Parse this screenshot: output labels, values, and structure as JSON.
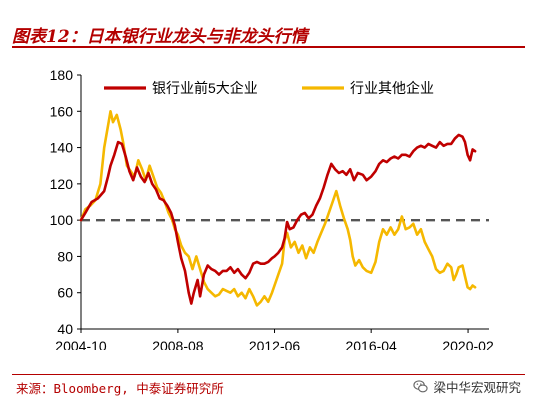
{
  "header": {
    "title": "图表12：日本银行业龙头与非龙头行情"
  },
  "footer": {
    "source": "来源：Bloomberg, 中泰证券研究所",
    "watermark": "梁中华宏观研究",
    "watermark_icon": "wechat-icon"
  },
  "chart_data": {
    "type": "line",
    "title": "",
    "xlabel": "",
    "ylabel": "",
    "ylim": [
      40,
      180
    ],
    "yticks": [
      40,
      60,
      80,
      100,
      120,
      140,
      160,
      180
    ],
    "xlim": [
      2004.83,
      2021.0
    ],
    "xticks": [
      {
        "label": "2004-10",
        "value": 2004.83
      },
      {
        "label": "2008-08",
        "value": 2008.67
      },
      {
        "label": "2012-06",
        "value": 2012.5
      },
      {
        "label": "2016-04",
        "value": 2016.33
      },
      {
        "label": "2020-02",
        "value": 2020.17
      }
    ],
    "reference_line": {
      "y": 100,
      "style": "dashed",
      "color": "#555555"
    },
    "legend": {
      "position": "top"
    },
    "grid": false,
    "series": [
      {
        "name": "银行业前5大企业",
        "color": "#C00000",
        "points": [
          [
            2004.83,
            100
          ],
          [
            2005.0,
            104
          ],
          [
            2005.25,
            110
          ],
          [
            2005.5,
            112
          ],
          [
            2005.75,
            116
          ],
          [
            2005.9,
            124
          ],
          [
            2006.0,
            130
          ],
          [
            2006.15,
            136
          ],
          [
            2006.3,
            143
          ],
          [
            2006.45,
            142
          ],
          [
            2006.6,
            135
          ],
          [
            2006.75,
            127
          ],
          [
            2006.9,
            122
          ],
          [
            2007.05,
            129
          ],
          [
            2007.2,
            124
          ],
          [
            2007.35,
            121
          ],
          [
            2007.5,
            126
          ],
          [
            2007.65,
            120
          ],
          [
            2007.8,
            117
          ],
          [
            2007.95,
            112
          ],
          [
            2008.1,
            111
          ],
          [
            2008.25,
            108
          ],
          [
            2008.4,
            104
          ],
          [
            2008.55,
            97
          ],
          [
            2008.67,
            88
          ],
          [
            2008.8,
            79
          ],
          [
            2008.95,
            72
          ],
          [
            2009.1,
            60
          ],
          [
            2009.2,
            54
          ],
          [
            2009.3,
            60
          ],
          [
            2009.45,
            67
          ],
          [
            2009.55,
            58
          ],
          [
            2009.7,
            70
          ],
          [
            2009.85,
            75
          ],
          [
            2010.0,
            73
          ],
          [
            2010.15,
            72
          ],
          [
            2010.3,
            70
          ],
          [
            2010.45,
            72
          ],
          [
            2010.6,
            72
          ],
          [
            2010.75,
            74
          ],
          [
            2010.9,
            71
          ],
          [
            2011.05,
            73
          ],
          [
            2011.2,
            70
          ],
          [
            2011.35,
            68
          ],
          [
            2011.5,
            71
          ],
          [
            2011.65,
            76
          ],
          [
            2011.8,
            77
          ],
          [
            2011.95,
            76
          ],
          [
            2012.1,
            76
          ],
          [
            2012.25,
            77
          ],
          [
            2012.4,
            79
          ],
          [
            2012.5,
            80
          ],
          [
            2012.65,
            82
          ],
          [
            2012.8,
            85
          ],
          [
            2012.9,
            90
          ],
          [
            2013.0,
            99
          ],
          [
            2013.1,
            95
          ],
          [
            2013.25,
            96
          ],
          [
            2013.4,
            100
          ],
          [
            2013.55,
            103
          ],
          [
            2013.7,
            104
          ],
          [
            2013.85,
            101
          ],
          [
            2014.0,
            103
          ],
          [
            2014.15,
            108
          ],
          [
            2014.3,
            112
          ],
          [
            2014.45,
            118
          ],
          [
            2014.6,
            125
          ],
          [
            2014.75,
            131
          ],
          [
            2014.9,
            128
          ],
          [
            2015.05,
            126
          ],
          [
            2015.2,
            127
          ],
          [
            2015.35,
            125
          ],
          [
            2015.5,
            128
          ],
          [
            2015.65,
            122
          ],
          [
            2015.8,
            126
          ],
          [
            2016.0,
            125
          ],
          [
            2016.15,
            122
          ],
          [
            2016.33,
            124
          ],
          [
            2016.5,
            127
          ],
          [
            2016.65,
            131
          ],
          [
            2016.8,
            133
          ],
          [
            2016.95,
            132
          ],
          [
            2017.1,
            134
          ],
          [
            2017.25,
            135
          ],
          [
            2017.4,
            134
          ],
          [
            2017.55,
            136
          ],
          [
            2017.7,
            136
          ],
          [
            2017.85,
            135
          ],
          [
            2018.0,
            138
          ],
          [
            2018.15,
            140
          ],
          [
            2018.3,
            141
          ],
          [
            2018.45,
            140
          ],
          [
            2018.6,
            142
          ],
          [
            2018.75,
            141
          ],
          [
            2018.9,
            140
          ],
          [
            2019.05,
            143
          ],
          [
            2019.2,
            141
          ],
          [
            2019.35,
            142
          ],
          [
            2019.5,
            142
          ],
          [
            2019.65,
            145
          ],
          [
            2019.8,
            147
          ],
          [
            2019.95,
            146
          ],
          [
            2020.05,
            143
          ],
          [
            2020.15,
            136
          ],
          [
            2020.25,
            133
          ],
          [
            2020.35,
            139
          ],
          [
            2020.45,
            138
          ]
        ]
      },
      {
        "name": "行业其他企业",
        "color": "#F5B800",
        "points": [
          [
            2004.83,
            100
          ],
          [
            2005.0,
            106
          ],
          [
            2005.2,
            108
          ],
          [
            2005.4,
            111
          ],
          [
            2005.6,
            120
          ],
          [
            2005.75,
            140
          ],
          [
            2005.9,
            152
          ],
          [
            2006.0,
            160
          ],
          [
            2006.1,
            154
          ],
          [
            2006.25,
            158
          ],
          [
            2006.4,
            150
          ],
          [
            2006.5,
            143
          ],
          [
            2006.65,
            130
          ],
          [
            2006.8,
            127
          ],
          [
            2006.95,
            124
          ],
          [
            2007.1,
            133
          ],
          [
            2007.25,
            128
          ],
          [
            2007.4,
            122
          ],
          [
            2007.55,
            130
          ],
          [
            2007.7,
            124
          ],
          [
            2007.85,
            118
          ],
          [
            2008.0,
            115
          ],
          [
            2008.15,
            110
          ],
          [
            2008.3,
            104
          ],
          [
            2008.45,
            100
          ],
          [
            2008.55,
            95
          ],
          [
            2008.67,
            92
          ],
          [
            2008.8,
            86
          ],
          [
            2008.95,
            82
          ],
          [
            2009.1,
            80
          ],
          [
            2009.25,
            73
          ],
          [
            2009.4,
            80
          ],
          [
            2009.55,
            73
          ],
          [
            2009.7,
            66
          ],
          [
            2009.85,
            62
          ],
          [
            2010.0,
            60
          ],
          [
            2010.15,
            58
          ],
          [
            2010.3,
            59
          ],
          [
            2010.45,
            62
          ],
          [
            2010.6,
            61
          ],
          [
            2010.75,
            60
          ],
          [
            2010.9,
            62
          ],
          [
            2011.05,
            58
          ],
          [
            2011.2,
            60
          ],
          [
            2011.35,
            57
          ],
          [
            2011.5,
            62
          ],
          [
            2011.65,
            58
          ],
          [
            2011.8,
            53
          ],
          [
            2011.95,
            55
          ],
          [
            2012.1,
            58
          ],
          [
            2012.25,
            55
          ],
          [
            2012.4,
            60
          ],
          [
            2012.5,
            64
          ],
          [
            2012.65,
            70
          ],
          [
            2012.8,
            76
          ],
          [
            2012.9,
            89
          ],
          [
            2013.0,
            93
          ],
          [
            2013.15,
            85
          ],
          [
            2013.3,
            88
          ],
          [
            2013.45,
            82
          ],
          [
            2013.6,
            86
          ],
          [
            2013.75,
            79
          ],
          [
            2013.9,
            85
          ],
          [
            2014.05,
            82
          ],
          [
            2014.2,
            88
          ],
          [
            2014.35,
            93
          ],
          [
            2014.5,
            98
          ],
          [
            2014.65,
            104
          ],
          [
            2014.8,
            110
          ],
          [
            2014.95,
            116
          ],
          [
            2015.1,
            108
          ],
          [
            2015.25,
            101
          ],
          [
            2015.4,
            95
          ],
          [
            2015.5,
            89
          ],
          [
            2015.6,
            80
          ],
          [
            2015.7,
            75
          ],
          [
            2015.85,
            78
          ],
          [
            2016.0,
            74
          ],
          [
            2016.15,
            72
          ],
          [
            2016.33,
            71
          ],
          [
            2016.5,
            77
          ],
          [
            2016.65,
            88
          ],
          [
            2016.8,
            95
          ],
          [
            2016.95,
            92
          ],
          [
            2017.1,
            96
          ],
          [
            2017.25,
            92
          ],
          [
            2017.4,
            95
          ],
          [
            2017.55,
            102
          ],
          [
            2017.7,
            95
          ],
          [
            2017.85,
            96
          ],
          [
            2018.0,
            98
          ],
          [
            2018.15,
            92
          ],
          [
            2018.3,
            95
          ],
          [
            2018.45,
            88
          ],
          [
            2018.6,
            84
          ],
          [
            2018.75,
            80
          ],
          [
            2018.9,
            73
          ],
          [
            2019.05,
            71
          ],
          [
            2019.2,
            72
          ],
          [
            2019.35,
            76
          ],
          [
            2019.5,
            74
          ],
          [
            2019.6,
            67
          ],
          [
            2019.7,
            70
          ],
          [
            2019.8,
            74
          ],
          [
            2019.95,
            75
          ],
          [
            2020.05,
            69
          ],
          [
            2020.15,
            63
          ],
          [
            2020.25,
            62
          ],
          [
            2020.35,
            64
          ],
          [
            2020.45,
            63
          ]
        ]
      }
    ]
  }
}
